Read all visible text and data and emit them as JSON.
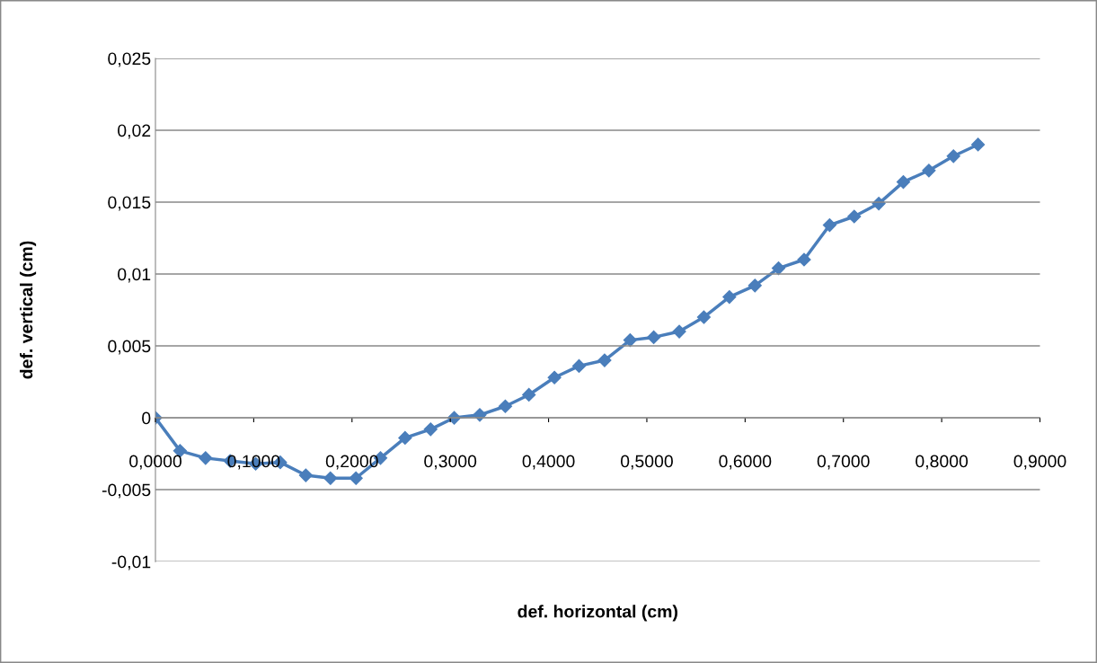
{
  "chart_data": {
    "type": "line",
    "xlabel": "def. horizontal (cm)",
    "ylabel": "def. vertical (cm)",
    "xlim": [
      0,
      0.9
    ],
    "ylim": [
      -0.01,
      0.025
    ],
    "xticks": [
      {
        "value": 0,
        "label": "0,0000"
      },
      {
        "value": 0.1,
        "label": "0,1000"
      },
      {
        "value": 0.2,
        "label": "0,2000"
      },
      {
        "value": 0.3,
        "label": "0,3000"
      },
      {
        "value": 0.4,
        "label": "0,4000"
      },
      {
        "value": 0.5,
        "label": "0,5000"
      },
      {
        "value": 0.6,
        "label": "0,6000"
      },
      {
        "value": 0.7,
        "label": "0,7000"
      },
      {
        "value": 0.8,
        "label": "0,8000"
      },
      {
        "value": 0.9,
        "label": "0,9000"
      }
    ],
    "yticks": [
      {
        "value": -0.01,
        "label": "-0,01"
      },
      {
        "value": -0.005,
        "label": "-0,005"
      },
      {
        "value": 0,
        "label": "0"
      },
      {
        "value": 0.005,
        "label": "0,005"
      },
      {
        "value": 0.01,
        "label": "0,01"
      },
      {
        "value": 0.015,
        "label": "0,015"
      },
      {
        "value": 0.02,
        "label": "0,02"
      },
      {
        "value": 0.025,
        "label": "0,025"
      }
    ],
    "grid": "y",
    "marker": "diamond",
    "line_style": "solid",
    "series": [
      {
        "color": "#4a7ebb",
        "x": [
          0,
          0.025,
          0.051,
          0.076,
          0.102,
          0.127,
          0.153,
          0.178,
          0.204,
          0.229,
          0.254,
          0.28,
          0.304,
          0.33,
          0.356,
          0.38,
          0.406,
          0.431,
          0.457,
          0.483,
          0.507,
          0.533,
          0.558,
          0.584,
          0.61,
          0.634,
          0.66,
          0.686,
          0.711,
          0.736,
          0.761,
          0.787,
          0.812,
          0.837
        ],
        "values": [
          0,
          -0.0023,
          -0.0028,
          -0.003,
          -0.0032,
          -0.0031,
          -0.004,
          -0.0042,
          -0.0042,
          -0.0028,
          -0.0014,
          -0.0008,
          0,
          0.0002,
          0.0008,
          0.0016,
          0.0028,
          0.0036,
          0.004,
          0.0054,
          0.0056,
          0.006,
          0.007,
          0.0084,
          0.0092,
          0.0104,
          0.011,
          0.0134,
          0.014,
          0.0149,
          0.0164,
          0.0172,
          0.0182,
          0.019
        ]
      }
    ]
  }
}
